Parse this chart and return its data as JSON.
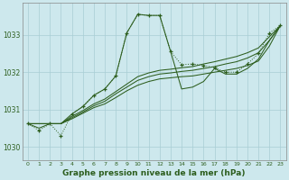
{
  "xlabel": "Graphe pression niveau de la mer (hPa)",
  "bg_color": "#cde8ed",
  "grid_color": "#a8cdd4",
  "line_color": "#2d5e1e",
  "xlim": [
    -0.5,
    23.5
  ],
  "ylim": [
    1029.65,
    1033.85
  ],
  "yticks": [
    1030,
    1031,
    1032,
    1033
  ],
  "xticks": [
    0,
    1,
    2,
    3,
    4,
    5,
    6,
    7,
    8,
    9,
    10,
    11,
    12,
    13,
    14,
    15,
    16,
    17,
    18,
    19,
    20,
    21,
    22,
    23
  ],
  "main_x": [
    0,
    1,
    2,
    3,
    4,
    5,
    6,
    7,
    8,
    9,
    10,
    11,
    12,
    13,
    14,
    15,
    16,
    17,
    18,
    19,
    20,
    21,
    22,
    23
  ],
  "main_y": [
    1030.62,
    1030.44,
    1030.62,
    1030.3,
    1030.88,
    1031.08,
    1031.38,
    1031.55,
    1031.9,
    1033.05,
    1033.55,
    1033.52,
    1033.52,
    1032.55,
    1032.2,
    1032.22,
    1032.18,
    1032.12,
    1032.0,
    1032.0,
    1032.22,
    1032.5,
    1033.05,
    1033.25
  ],
  "line2_x": [
    0,
    1,
    2,
    3,
    4,
    5,
    6,
    7,
    8,
    9,
    10,
    11,
    12,
    13,
    14,
    15,
    16,
    17,
    18,
    19,
    20,
    21,
    22,
    23
  ],
  "line2_y": [
    1030.62,
    1030.5,
    1030.62,
    1030.62,
    1030.88,
    1031.08,
    1031.38,
    1031.55,
    1031.9,
    1033.05,
    1033.55,
    1033.52,
    1033.52,
    1032.55,
    1031.55,
    1031.6,
    1031.75,
    1032.1,
    1031.95,
    1031.95,
    1032.1,
    1032.35,
    1032.85,
    1033.25
  ],
  "line3_x": [
    0,
    1,
    2,
    3,
    4,
    5,
    6,
    7,
    8,
    9,
    10,
    11,
    12,
    13,
    14,
    15,
    16,
    17,
    18,
    19,
    20,
    21,
    22,
    23
  ],
  "line3_y": [
    1030.62,
    1030.62,
    1030.62,
    1030.62,
    1030.75,
    1030.9,
    1031.05,
    1031.15,
    1031.32,
    1031.5,
    1031.65,
    1031.75,
    1031.82,
    1031.85,
    1031.88,
    1031.9,
    1031.95,
    1032.0,
    1032.05,
    1032.1,
    1032.18,
    1032.3,
    1032.7,
    1033.25
  ],
  "line4_x": [
    0,
    1,
    2,
    3,
    4,
    5,
    6,
    7,
    8,
    9,
    10,
    11,
    12,
    13,
    14,
    15,
    16,
    17,
    18,
    19,
    20,
    21,
    22,
    23
  ],
  "line4_y": [
    1030.62,
    1030.62,
    1030.62,
    1030.62,
    1030.78,
    1030.93,
    1031.1,
    1031.22,
    1031.42,
    1031.6,
    1031.78,
    1031.88,
    1031.95,
    1031.98,
    1032.02,
    1032.05,
    1032.1,
    1032.15,
    1032.22,
    1032.28,
    1032.38,
    1032.52,
    1032.85,
    1033.25
  ],
  "line5_x": [
    0,
    1,
    2,
    3,
    4,
    5,
    6,
    7,
    8,
    9,
    10,
    11,
    12,
    13,
    14,
    15,
    16,
    17,
    18,
    19,
    20,
    21,
    22,
    23
  ],
  "line5_y": [
    1030.62,
    1030.62,
    1030.62,
    1030.62,
    1030.82,
    1030.97,
    1031.15,
    1031.28,
    1031.48,
    1031.68,
    1031.88,
    1031.98,
    1032.05,
    1032.08,
    1032.12,
    1032.15,
    1032.22,
    1032.28,
    1032.35,
    1032.42,
    1032.52,
    1032.65,
    1032.95,
    1033.25
  ]
}
